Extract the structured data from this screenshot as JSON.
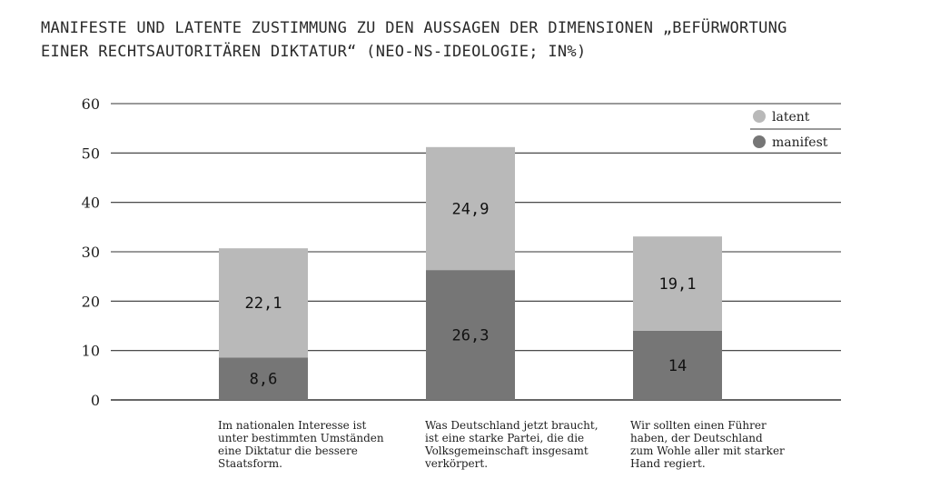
{
  "title": {
    "line1": "MANIFESTE UND LATENTE ZUSTIMMUNG ZU DEN AUSSAGEN DER DIMENSIONEN „BEFÜRWORTUNG",
    "line2": "EINER RECHTSAUTORITÄREN DIKTATUR“ (NEO-NS-IDEOLOGIE; IN%)"
  },
  "colors": {
    "latent": "#b9b9b9",
    "manifest": "#767676",
    "grid": "#333333",
    "text": "#1e1e1e"
  },
  "chart_data": {
    "type": "bar",
    "stacked": true,
    "title": "MANIFESTE UND LATENTE ZUSTIMMUNG ZU DEN AUSSAGEN DER DIMENSIONEN „BEFÜRWORTUNG EINER RECHTSAUTORITÄREN DIKTATUR“ (NEO-NS-IDEOLOGIE; IN%)",
    "ylim": [
      0,
      60
    ],
    "yticks": [
      0,
      10,
      20,
      30,
      40,
      50,
      60
    ],
    "grid": true,
    "legend_position": "top-right",
    "categories": [
      [
        "Im nationalen Interesse ist",
        "unter bestimmten Umständen",
        "eine Diktatur die bessere",
        "Staatsform."
      ],
      [
        "Was Deutschland jetzt braucht,",
        "ist eine starke Partei, die die",
        "Volksgemeinschaft insgesamt",
        "verkörpert."
      ],
      [
        "Wir sollten einen Führer",
        "haben, der Deutschland",
        "zum Wohle aller mit starker",
        "Hand regiert."
      ]
    ],
    "series": [
      {
        "name": "manifest",
        "values": [
          8.6,
          26.3,
          14
        ],
        "labels": [
          "8,6",
          "26,3",
          "14"
        ]
      },
      {
        "name": "latent",
        "values": [
          22.1,
          24.9,
          19.1
        ],
        "labels": [
          "22,1",
          "24,9",
          "19,1"
        ]
      }
    ],
    "legend": [
      "latent",
      "manifest"
    ]
  }
}
